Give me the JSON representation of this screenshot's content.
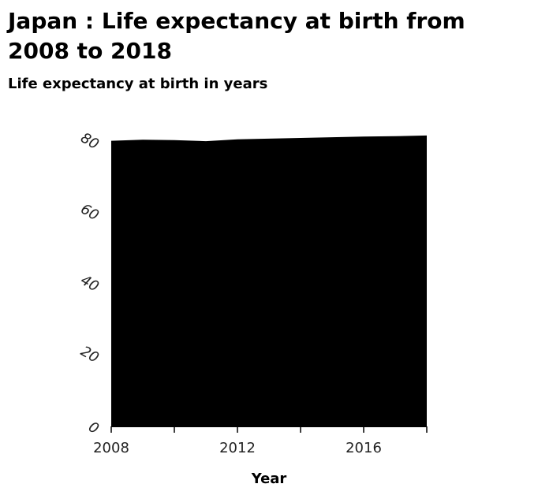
{
  "chart_data": {
    "type": "area",
    "title": "Japan : Life expectancy at birth from 2008 to 2018",
    "ylabel": "Life expectancy at birth in years",
    "xlabel": "Year",
    "x": [
      2008,
      2009,
      2010,
      2011,
      2012,
      2013,
      2014,
      2015,
      2016,
      2017,
      2018
    ],
    "values": [
      80.3,
      80.6,
      80.5,
      80.2,
      80.7,
      80.9,
      81.1,
      81.3,
      81.5,
      81.6,
      81.8
    ],
    "xlim": [
      2008,
      2018
    ],
    "ylim": [
      0,
      80
    ],
    "x_ticks": [
      2008,
      2010,
      2012,
      2014,
      2016,
      2018
    ],
    "x_tick_labels": [
      "2008",
      "",
      "2012",
      "",
      "2016",
      ""
    ],
    "y_ticks": [
      0,
      20,
      40,
      60,
      80
    ],
    "y_tick_labels": [
      "0",
      "20",
      "40",
      "60",
      "80"
    ],
    "fill_color": "#000000",
    "grid": false,
    "legend": false
  }
}
